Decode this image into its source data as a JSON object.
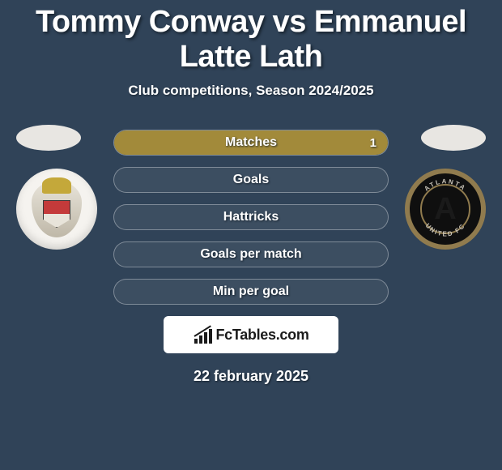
{
  "title": "Tommy Conway vs Emmanuel Latte Lath",
  "subtitle": "Club competitions, Season 2024/2025",
  "date": "22 february 2025",
  "watermark": "FcTables.com",
  "colors": {
    "background": "#304358",
    "player1_fill": "#7a6a4a",
    "player2_fill": "#a28a3a",
    "bar_empty": "rgba(255,255,255,0.06)"
  },
  "stats": [
    {
      "label": "Matches",
      "p1": null,
      "p2": 1,
      "p1_pct": 0,
      "p2_pct": 100
    },
    {
      "label": "Goals",
      "p1": null,
      "p2": null,
      "p1_pct": 0,
      "p2_pct": 0
    },
    {
      "label": "Hattricks",
      "p1": null,
      "p2": null,
      "p1_pct": 0,
      "p2_pct": 0
    },
    {
      "label": "Goals per match",
      "p1": null,
      "p2": null,
      "p1_pct": 0,
      "p2_pct": 0
    },
    {
      "label": "Min per goal",
      "p1": null,
      "p2": null,
      "p1_pct": 0,
      "p2_pct": 0
    }
  ]
}
